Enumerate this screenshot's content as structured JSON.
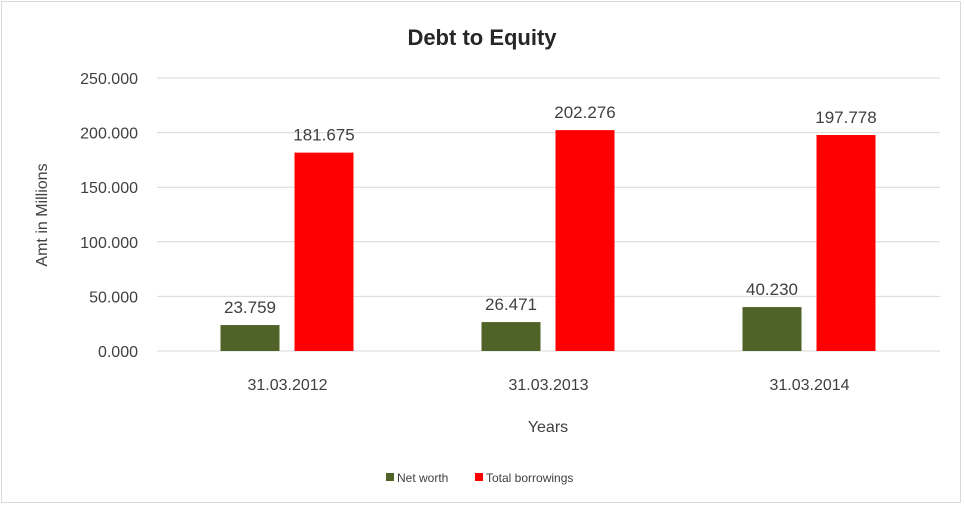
{
  "chart_data": {
    "type": "bar",
    "title": "Debt to Equity",
    "xlabel": "Years",
    "ylabel": "Amt in Millions",
    "categories": [
      "31.03.2012",
      "31.03.2013",
      "31.03.2014"
    ],
    "series": [
      {
        "name": "Net worth",
        "color": "#4f6228",
        "values": [
          23.759,
          26.471,
          40.23
        ],
        "labels": [
          "23.759",
          "26.471",
          "40.230"
        ]
      },
      {
        "name": "Total borrowings",
        "color": "#ff0000",
        "values": [
          181.675,
          202.276,
          197.778
        ],
        "labels": [
          "181.675",
          "202.276",
          "197.778"
        ]
      }
    ],
    "ylim": [
      0,
      250
    ],
    "yticks": [
      "0.000",
      "50.000",
      "100.000",
      "150.000",
      "200.000",
      "250.000"
    ],
    "grid": true,
    "legend": "bottom"
  }
}
